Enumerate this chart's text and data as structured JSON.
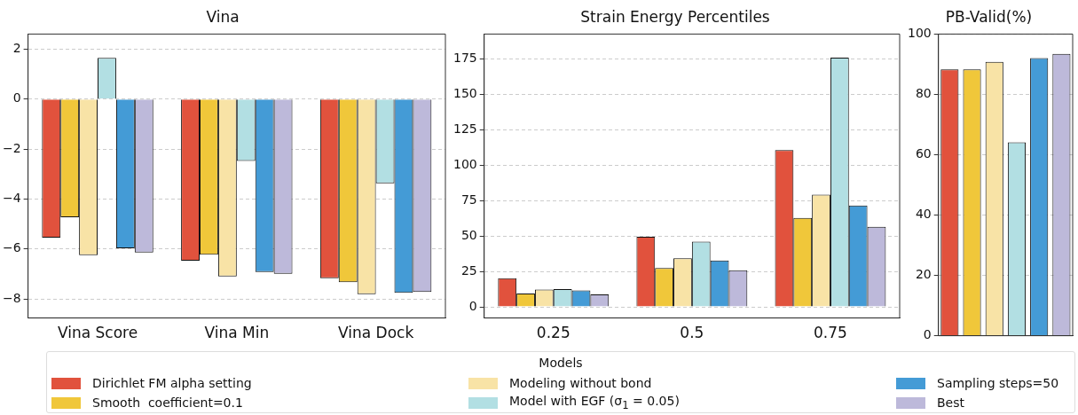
{
  "chart_data": [
    {
      "type": "bar",
      "title": "Vina",
      "categories": [
        "Vina Score",
        "Vina Min",
        "Vina Dock"
      ],
      "ylim": [
        -8.76,
        2.6
      ],
      "yticks": [
        {
          "value": -8,
          "label": "−8"
        },
        {
          "value": -6,
          "label": "−6"
        },
        {
          "value": -4,
          "label": "−4"
        },
        {
          "value": -2,
          "label": "−2"
        },
        0,
        2
      ],
      "grid": "y",
      "legend": "bottom",
      "legend_title": "Models",
      "series": [
        {
          "name": "Dirichlet FM alpha setting",
          "color": "#e1523d",
          "values": [
            -5.55,
            -6.47,
            -7.17
          ]
        },
        {
          "name": "Smooth  coefficient=0.1",
          "color": "#f0c73a",
          "values": [
            -4.73,
            -6.23,
            -7.33
          ]
        },
        {
          "name": "Modeling without bond",
          "color": "#f8e3a6",
          "values": [
            -6.25,
            -7.1,
            -7.81
          ]
        },
        {
          "name": "Model with EGF (σ$_{1}$ = 0.05)",
          "color": "#b2dfe3",
          "values": [
            1.65,
            -2.48,
            -3.37
          ]
        },
        {
          "name": "Sampling steps=50",
          "color": "#449bd6",
          "values": [
            -5.97,
            -6.92,
            -7.75
          ]
        },
        {
          "name": "Best",
          "color": "#bdb9da",
          "values": [
            -6.14,
            -6.99,
            -7.72
          ]
        }
      ]
    },
    {
      "type": "bar",
      "title": "Strain Energy Percentiles",
      "categories": [
        "0.25",
        "0.5",
        "0.75"
      ],
      "ylim": [
        -7.8,
        192.3
      ],
      "yticks": [
        0,
        25,
        50,
        75,
        100,
        125,
        150,
        175
      ],
      "grid": "y",
      "series": [
        {
          "color": "#e1523d",
          "values": [
            20.3,
            49.4,
            110.5
          ]
        },
        {
          "color": "#f0c73a",
          "values": [
            9.5,
            27.4,
            62.8
          ]
        },
        {
          "color": "#f8e3a6",
          "values": [
            12.3,
            34.3,
            79.2
          ]
        },
        {
          "color": "#b2dfe3",
          "values": [
            12.5,
            46.0,
            175.7
          ]
        },
        {
          "color": "#449bd6",
          "values": [
            11.7,
            32.8,
            71.4
          ]
        },
        {
          "color": "#bdb9da",
          "values": [
            8.8,
            25.9,
            56.5
          ]
        }
      ]
    },
    {
      "type": "bar",
      "title": "PB-Valid(%)",
      "categories": [
        null,
        null,
        null,
        null,
        null,
        null
      ],
      "ylim": [
        0,
        100
      ],
      "yticks": [
        0,
        20,
        40,
        60,
        80,
        100
      ],
      "grid": "y",
      "tick_labels": "y",
      "values": [
        88.3,
        88.3,
        90.8,
        64.1,
        92.0,
        93.4
      ],
      "colors": [
        "#e1523d",
        "#f0c73a",
        "#f8e3a6",
        "#b2dfe3",
        "#449bd6",
        "#bdb9da"
      ]
    }
  ]
}
